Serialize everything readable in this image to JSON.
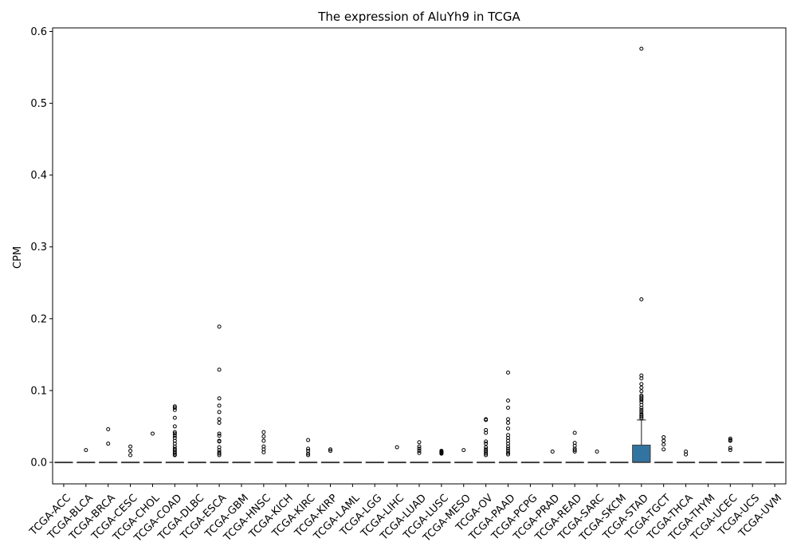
{
  "chart_data": {
    "type": "box",
    "title": "The expression of AluYh9 in TCGA",
    "xlabel": "",
    "ylabel": "CPM",
    "ylim": [
      -0.03,
      0.605
    ],
    "yticks": [
      0.0,
      0.1,
      0.2,
      0.3,
      0.4,
      0.5,
      0.6
    ],
    "ytick_labels": [
      "0.0",
      "0.1",
      "0.2",
      "0.3",
      "0.4",
      "0.5",
      "0.6"
    ],
    "grid": false,
    "legend": "none",
    "box_color": "#3274a1",
    "median_color": "#3a3a3a",
    "categories": [
      "TCGA-ACC",
      "TCGA-BLCA",
      "TCGA-BRCA",
      "TCGA-CESC",
      "TCGA-CHOL",
      "TCGA-COAD",
      "TCGA-DLBC",
      "TCGA-ESCA",
      "TCGA-GBM",
      "TCGA-HNSC",
      "TCGA-KICH",
      "TCGA-KIRC",
      "TCGA-KIRP",
      "TCGA-LAML",
      "TCGA-LGG",
      "TCGA-LIHC",
      "TCGA-LUAD",
      "TCGA-LUSC",
      "TCGA-MESO",
      "TCGA-OV",
      "TCGA-PAAD",
      "TCGA-PCPG",
      "TCGA-PRAD",
      "TCGA-READ",
      "TCGA-SARC",
      "TCGA-SKCM",
      "TCGA-STAD",
      "TCGA-TGCT",
      "TCGA-THCA",
      "TCGA-THYM",
      "TCGA-UCEC",
      "TCGA-UCS",
      "TCGA-UVM"
    ],
    "boxes": [
      {
        "q1": 0,
        "median": 0,
        "q3": 0,
        "whisker_low": 0,
        "whisker_high": 0,
        "outliers": []
      },
      {
        "q1": 0,
        "median": 0,
        "q3": 0,
        "whisker_low": 0,
        "whisker_high": 0,
        "outliers": [
          0.017
        ]
      },
      {
        "q1": 0,
        "median": 0,
        "q3": 0,
        "whisker_low": 0,
        "whisker_high": 0,
        "outliers": [
          0.046,
          0.026
        ]
      },
      {
        "q1": 0,
        "median": 0,
        "q3": 0,
        "whisker_low": 0,
        "whisker_high": 0,
        "outliers": [
          0.022,
          0.016,
          0.01
        ]
      },
      {
        "q1": 0,
        "median": 0,
        "q3": 0,
        "whisker_low": 0,
        "whisker_high": 0,
        "outliers": [
          0.04
        ]
      },
      {
        "q1": 0,
        "median": 0,
        "q3": 0,
        "whisker_low": 0,
        "whisker_high": 0,
        "outliers": [
          0.078,
          0.076,
          0.073,
          0.062,
          0.05,
          0.042,
          0.04,
          0.037,
          0.034,
          0.03,
          0.026,
          0.022,
          0.019,
          0.017,
          0.015,
          0.013,
          0.011,
          0.01
        ]
      },
      {
        "q1": 0,
        "median": 0,
        "q3": 0,
        "whisker_low": 0,
        "whisker_high": 0,
        "outliers": []
      },
      {
        "q1": 0,
        "median": 0,
        "q3": 0,
        "whisker_low": 0,
        "whisker_high": 0,
        "outliers": [
          0.189,
          0.129,
          0.089,
          0.079,
          0.07,
          0.06,
          0.055,
          0.04,
          0.037,
          0.03,
          0.029,
          0.021,
          0.017,
          0.014,
          0.012,
          0.01
        ]
      },
      {
        "q1": 0,
        "median": 0,
        "q3": 0,
        "whisker_low": 0,
        "whisker_high": 0,
        "outliers": []
      },
      {
        "q1": 0,
        "median": 0,
        "q3": 0,
        "whisker_low": 0,
        "whisker_high": 0,
        "outliers": [
          0.042,
          0.036,
          0.03,
          0.022,
          0.018,
          0.014
        ]
      },
      {
        "q1": 0,
        "median": 0,
        "q3": 0,
        "whisker_low": 0,
        "whisker_high": 0,
        "outliers": []
      },
      {
        "q1": 0,
        "median": 0,
        "q3": 0,
        "whisker_low": 0,
        "whisker_high": 0,
        "outliers": [
          0.031,
          0.019,
          0.016,
          0.012,
          0.01
        ]
      },
      {
        "q1": 0,
        "median": 0,
        "q3": 0,
        "whisker_low": 0,
        "whisker_high": 0,
        "outliers": [
          0.018,
          0.016
        ]
      },
      {
        "q1": 0,
        "median": 0,
        "q3": 0,
        "whisker_low": 0,
        "whisker_high": 0,
        "outliers": []
      },
      {
        "q1": 0,
        "median": 0,
        "q3": 0,
        "whisker_low": 0,
        "whisker_high": 0,
        "outliers": []
      },
      {
        "q1": 0,
        "median": 0,
        "q3": 0,
        "whisker_low": 0,
        "whisker_high": 0,
        "outliers": [
          0.021
        ]
      },
      {
        "q1": 0,
        "median": 0,
        "q3": 0,
        "whisker_low": 0,
        "whisker_high": 0,
        "outliers": [
          0.028,
          0.022,
          0.019,
          0.016,
          0.013
        ]
      },
      {
        "q1": 0,
        "median": 0,
        "q3": 0,
        "whisker_low": 0,
        "whisker_high": 0,
        "outliers": [
          0.016,
          0.015,
          0.014,
          0.013,
          0.012
        ]
      },
      {
        "q1": 0,
        "median": 0,
        "q3": 0,
        "whisker_low": 0,
        "whisker_high": 0,
        "outliers": [
          0.017
        ]
      },
      {
        "q1": 0,
        "median": 0,
        "q3": 0,
        "whisker_low": 0,
        "whisker_high": 0,
        "outliers": [
          0.06,
          0.059,
          0.045,
          0.041,
          0.029,
          0.026,
          0.021,
          0.018,
          0.016,
          0.014,
          0.012,
          0.01
        ]
      },
      {
        "q1": 0,
        "median": 0,
        "q3": 0,
        "whisker_low": 0,
        "whisker_high": 0,
        "outliers": [
          0.125,
          0.086,
          0.076,
          0.06,
          0.055,
          0.047,
          0.038,
          0.034,
          0.03,
          0.026,
          0.022,
          0.019,
          0.016,
          0.013,
          0.011
        ]
      },
      {
        "q1": 0,
        "median": 0,
        "q3": 0,
        "whisker_low": 0,
        "whisker_high": 0,
        "outliers": []
      },
      {
        "q1": 0,
        "median": 0,
        "q3": 0,
        "whisker_low": 0,
        "whisker_high": 0,
        "outliers": [
          0.015
        ]
      },
      {
        "q1": 0,
        "median": 0,
        "q3": 0,
        "whisker_low": 0,
        "whisker_high": 0,
        "outliers": [
          0.041,
          0.027,
          0.023,
          0.019,
          0.017,
          0.015
        ]
      },
      {
        "q1": 0,
        "median": 0,
        "q3": 0,
        "whisker_low": 0,
        "whisker_high": 0,
        "outliers": [
          0.015
        ]
      },
      {
        "q1": 0,
        "median": 0,
        "q3": 0,
        "whisker_low": 0,
        "whisker_high": 0,
        "outliers": []
      },
      {
        "q1": 0,
        "median": 0,
        "q3": 0.024,
        "whisker_low": 0,
        "whisker_high": 0.059,
        "outliers": [
          0.576,
          0.227,
          0.121,
          0.117,
          0.109,
          0.104,
          0.099,
          0.093,
          0.091,
          0.089,
          0.087,
          0.084,
          0.08,
          0.076,
          0.073,
          0.07,
          0.067,
          0.065,
          0.063,
          0.061
        ]
      },
      {
        "q1": 0,
        "median": 0,
        "q3": 0,
        "whisker_low": 0,
        "whisker_high": 0,
        "outliers": [
          0.035,
          0.03,
          0.025,
          0.018
        ]
      },
      {
        "q1": 0,
        "median": 0,
        "q3": 0,
        "whisker_low": 0,
        "whisker_high": 0,
        "outliers": [
          0.015,
          0.011
        ]
      },
      {
        "q1": 0,
        "median": 0,
        "q3": 0,
        "whisker_low": 0,
        "whisker_high": 0,
        "outliers": []
      },
      {
        "q1": 0,
        "median": 0,
        "q3": 0,
        "whisker_low": 0,
        "whisker_high": 0,
        "outliers": [
          0.033,
          0.031,
          0.03,
          0.02,
          0.017
        ]
      },
      {
        "q1": 0,
        "median": 0,
        "q3": 0,
        "whisker_low": 0,
        "whisker_high": 0,
        "outliers": []
      },
      {
        "q1": 0,
        "median": 0,
        "q3": 0,
        "whisker_low": 0,
        "whisker_high": 0,
        "outliers": []
      }
    ]
  }
}
